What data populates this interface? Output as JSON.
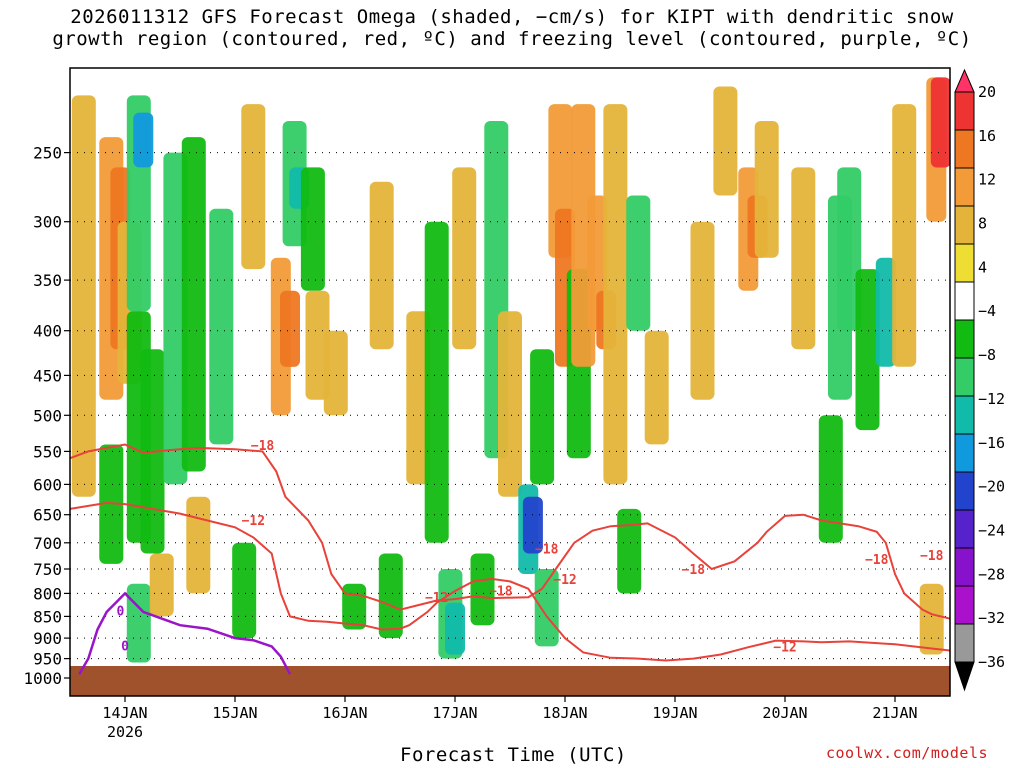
{
  "chart_data": {
    "type": "heatmap",
    "title_line1": "2026011312 GFS Forecast Omega (shaded, −cm/s) for KIPT with dendritic snow",
    "title_line2": "growth region (contoured, red, ºC) and freezing level (contoured, purple, ºC)",
    "xlabel": "Forecast Time (UTC)",
    "credit": "coolwx.com/models",
    "y_axis": {
      "unit": "hPa",
      "ticks": [
        "250",
        "300",
        "350",
        "400",
        "450",
        "500",
        "550",
        "600",
        "650",
        "700",
        "750",
        "800",
        "850",
        "900",
        "950",
        "1000"
      ],
      "range": [
        200,
        1000
      ]
    },
    "x_axis": {
      "unit": "hours since 2026011312",
      "range": [
        0,
        192
      ],
      "ticks": [
        {
          "label": "14JAN",
          "sublabel": "2026",
          "hour": 12
        },
        {
          "label": "15JAN",
          "hour": 36
        },
        {
          "label": "16JAN",
          "hour": 60
        },
        {
          "label": "17JAN",
          "hour": 84
        },
        {
          "label": "18JAN",
          "hour": 108
        },
        {
          "label": "19JAN",
          "hour": 132
        },
        {
          "label": "20JAN",
          "hour": 156
        },
        {
          "label": "21JAN",
          "hour": 180
        }
      ]
    },
    "colorbar": {
      "labels": [
        "20",
        "16",
        "12",
        "8",
        "4",
        "−4",
        "−8",
        "−12",
        "−16",
        "−20",
        "−24",
        "−28",
        "−32",
        "−36"
      ],
      "colors": [
        "#ff3366",
        "#ee3333",
        "#ee7722",
        "#f29b38",
        "#e4b43a",
        "#eedd33",
        "#ffffff",
        "#11bb11",
        "#33cc66",
        "#11bbaa",
        "#1199dd",
        "#2244cc",
        "#5522cc",
        "#8811cc",
        "#aa11cc",
        "#999999",
        "#000000"
      ]
    },
    "contour_labels": {
      "dgz_red": [
        "−18",
        "−12",
        "−18",
        "−18",
        "−12",
        "−18",
        "−12",
        "−18",
        "−12",
        "−18"
      ],
      "freezing_purple": [
        "0",
        "0"
      ]
    },
    "shading": [
      {
        "x": 3,
        "p0": 215,
        "p1": 620,
        "v": 6
      },
      {
        "x": 9,
        "p0": 240,
        "p1": 480,
        "v": 10
      },
      {
        "x": 9,
        "p0": 540,
        "p1": 740,
        "v": -6
      },
      {
        "x": 11,
        "p0": 260,
        "p1": 420,
        "v": 14
      },
      {
        "x": 13,
        "p0": 300,
        "p1": 460,
        "v": 8
      },
      {
        "x": 15,
        "p0": 215,
        "p1": 380,
        "v": -10
      },
      {
        "x": 15,
        "p0": 380,
        "p1": 700,
        "v": -6
      },
      {
        "x": 15,
        "p0": 780,
        "p1": 960,
        "v": -8
      },
      {
        "x": 16,
        "p0": 225,
        "p1": 260,
        "v": -16
      },
      {
        "x": 18,
        "p0": 420,
        "p1": 720,
        "v": -6
      },
      {
        "x": 20,
        "p0": 720,
        "p1": 850,
        "v": 6
      },
      {
        "x": 23,
        "p0": 250,
        "p1": 600,
        "v": -8
      },
      {
        "x": 27,
        "p0": 240,
        "p1": 580,
        "v": -6
      },
      {
        "x": 28,
        "p0": 620,
        "p1": 800,
        "v": 6
      },
      {
        "x": 33,
        "p0": 290,
        "p1": 540,
        "v": -8
      },
      {
        "x": 38,
        "p0": 700,
        "p1": 900,
        "v": -6
      },
      {
        "x": 40,
        "p0": 220,
        "p1": 340,
        "v": 6
      },
      {
        "x": 46,
        "p0": 330,
        "p1": 500,
        "v": 12
      },
      {
        "x": 48,
        "p0": 360,
        "p1": 440,
        "v": 16
      },
      {
        "x": 49,
        "p0": 230,
        "p1": 320,
        "v": -10
      },
      {
        "x": 50,
        "p0": 260,
        "p1": 290,
        "v": -14
      },
      {
        "x": 53,
        "p0": 260,
        "p1": 360,
        "v": -6
      },
      {
        "x": 54,
        "p0": 360,
        "p1": 480,
        "v": 8
      },
      {
        "x": 58,
        "p0": 400,
        "p1": 500,
        "v": 6
      },
      {
        "x": 62,
        "p0": 780,
        "p1": 880,
        "v": -6
      },
      {
        "x": 68,
        "p0": 270,
        "p1": 420,
        "v": 6
      },
      {
        "x": 70,
        "p0": 720,
        "p1": 900,
        "v": -6
      },
      {
        "x": 76,
        "p0": 380,
        "p1": 600,
        "v": 6
      },
      {
        "x": 80,
        "p0": 300,
        "p1": 700,
        "v": -6
      },
      {
        "x": 83,
        "p0": 750,
        "p1": 950,
        "v": -8
      },
      {
        "x": 84,
        "p0": 820,
        "p1": 940,
        "v": -12
      },
      {
        "x": 86,
        "p0": 260,
        "p1": 420,
        "v": 6
      },
      {
        "x": 90,
        "p0": 720,
        "p1": 870,
        "v": -6
      },
      {
        "x": 93,
        "p0": 230,
        "p1": 560,
        "v": -8
      },
      {
        "x": 96,
        "p0": 380,
        "p1": 620,
        "v": 6
      },
      {
        "x": 100,
        "p0": 600,
        "p1": 760,
        "v": -14
      },
      {
        "x": 101,
        "p0": 620,
        "p1": 720,
        "v": -20
      },
      {
        "x": 103,
        "p0": 420,
        "p1": 600,
        "v": -6
      },
      {
        "x": 104,
        "p0": 750,
        "p1": 920,
        "v": -8
      },
      {
        "x": 107,
        "p0": 220,
        "p1": 330,
        "v": 10
      },
      {
        "x": 108,
        "p0": 290,
        "p1": 440,
        "v": 14
      },
      {
        "x": 111,
        "p0": 340,
        "p1": 560,
        "v": -6
      },
      {
        "x": 112,
        "p0": 220,
        "p1": 440,
        "v": 10
      },
      {
        "x": 115,
        "p0": 280,
        "p1": 400,
        "v": 12
      },
      {
        "x": 117,
        "p0": 360,
        "p1": 420,
        "v": 16
      },
      {
        "x": 119,
        "p0": 220,
        "p1": 600,
        "v": 6
      },
      {
        "x": 122,
        "p0": 640,
        "p1": 800,
        "v": -6
      },
      {
        "x": 124,
        "p0": 280,
        "p1": 400,
        "v": -8
      },
      {
        "x": 128,
        "p0": 400,
        "p1": 540,
        "v": 6
      },
      {
        "x": 138,
        "p0": 300,
        "p1": 480,
        "v": 6
      },
      {
        "x": 143,
        "p0": 210,
        "p1": 280,
        "v": 6
      },
      {
        "x": 148,
        "p0": 260,
        "p1": 360,
        "v": 12
      },
      {
        "x": 150,
        "p0": 280,
        "p1": 330,
        "v": 16
      },
      {
        "x": 152,
        "p0": 230,
        "p1": 330,
        "v": 6
      },
      {
        "x": 160,
        "p0": 260,
        "p1": 420,
        "v": 6
      },
      {
        "x": 166,
        "p0": 500,
        "p1": 700,
        "v": -6
      },
      {
        "x": 168,
        "p0": 280,
        "p1": 480,
        "v": -8
      },
      {
        "x": 170,
        "p0": 260,
        "p1": 400,
        "v": -10
      },
      {
        "x": 174,
        "p0": 340,
        "p1": 520,
        "v": -6
      },
      {
        "x": 178,
        "p0": 330,
        "p1": 440,
        "v": -14
      },
      {
        "x": 182,
        "p0": 220,
        "p1": 440,
        "v": 6
      },
      {
        "x": 189,
        "p0": 205,
        "p1": 300,
        "v": 12
      },
      {
        "x": 190,
        "p0": 205,
        "p1": 260,
        "v": 18
      },
      {
        "x": 188,
        "p0": 780,
        "p1": 940,
        "v": 6
      }
    ],
    "isotherm_minus18": [
      [
        0,
        560
      ],
      [
        4,
        550
      ],
      [
        8,
        545
      ],
      [
        12,
        540
      ],
      [
        16,
        552
      ],
      [
        22,
        548
      ],
      [
        28,
        545
      ],
      [
        36,
        547
      ],
      [
        42,
        550
      ],
      [
        45,
        580
      ],
      [
        47,
        620
      ],
      [
        52,
        660
      ],
      [
        55,
        700
      ],
      [
        57,
        760
      ],
      [
        60,
        800
      ],
      [
        64,
        805
      ],
      [
        68,
        818
      ],
      [
        70,
        826
      ],
      [
        72,
        835
      ],
      [
        76,
        825
      ],
      [
        80,
        815
      ],
      [
        84,
        812
      ],
      [
        88,
        806
      ],
      [
        92,
        810
      ],
      [
        100,
        808
      ],
      [
        103,
        790
      ],
      [
        106,
        750
      ],
      [
        110,
        700
      ],
      [
        114,
        678
      ],
      [
        118,
        670
      ],
      [
        122,
        668
      ],
      [
        126,
        665
      ],
      [
        132,
        690
      ],
      [
        136,
        720
      ],
      [
        140,
        750
      ],
      [
        145,
        735
      ],
      [
        150,
        700
      ],
      [
        152,
        680
      ],
      [
        156,
        652
      ],
      [
        160,
        650
      ],
      [
        164,
        660
      ],
      [
        168,
        665
      ],
      [
        172,
        670
      ],
      [
        176,
        680
      ],
      [
        178,
        700
      ],
      [
        180,
        760
      ],
      [
        182,
        800
      ],
      [
        186,
        835
      ],
      [
        188,
        845
      ],
      [
        192,
        855
      ]
    ],
    "isotherm_minus12": [
      [
        0,
        640
      ],
      [
        4,
        635
      ],
      [
        8,
        630
      ],
      [
        12,
        632
      ],
      [
        18,
        640
      ],
      [
        24,
        648
      ],
      [
        30,
        660
      ],
      [
        36,
        672
      ],
      [
        40,
        690
      ],
      [
        44,
        720
      ],
      [
        46,
        800
      ],
      [
        48,
        850
      ],
      [
        52,
        860
      ],
      [
        56,
        862
      ],
      [
        60,
        866
      ],
      [
        64,
        870
      ],
      [
        68,
        880
      ],
      [
        72,
        878
      ],
      [
        74,
        870
      ],
      [
        78,
        840
      ],
      [
        80,
        820
      ],
      [
        84,
        795
      ],
      [
        88,
        775
      ],
      [
        92,
        770
      ],
      [
        96,
        775
      ],
      [
        100,
        790
      ],
      [
        104,
        850
      ],
      [
        108,
        900
      ],
      [
        112,
        935
      ],
      [
        118,
        948
      ],
      [
        124,
        950
      ],
      [
        130,
        955
      ],
      [
        136,
        950
      ],
      [
        142,
        940
      ],
      [
        148,
        922
      ],
      [
        154,
        906
      ],
      [
        160,
        908
      ],
      [
        164,
        910
      ],
      [
        170,
        908
      ],
      [
        176,
        912
      ],
      [
        180,
        915
      ],
      [
        184,
        920
      ],
      [
        188,
        925
      ],
      [
        192,
        930
      ]
    ],
    "freezing_level": [
      [
        2,
        990
      ],
      [
        4,
        950
      ],
      [
        6,
        880
      ],
      [
        8,
        840
      ],
      [
        10,
        820
      ],
      [
        12,
        800
      ],
      [
        14,
        820
      ],
      [
        16,
        840
      ],
      [
        20,
        855
      ],
      [
        24,
        870
      ],
      [
        30,
        878
      ],
      [
        36,
        900
      ],
      [
        40,
        905
      ],
      [
        44,
        920
      ],
      [
        46,
        945
      ],
      [
        48,
        990
      ]
    ]
  }
}
